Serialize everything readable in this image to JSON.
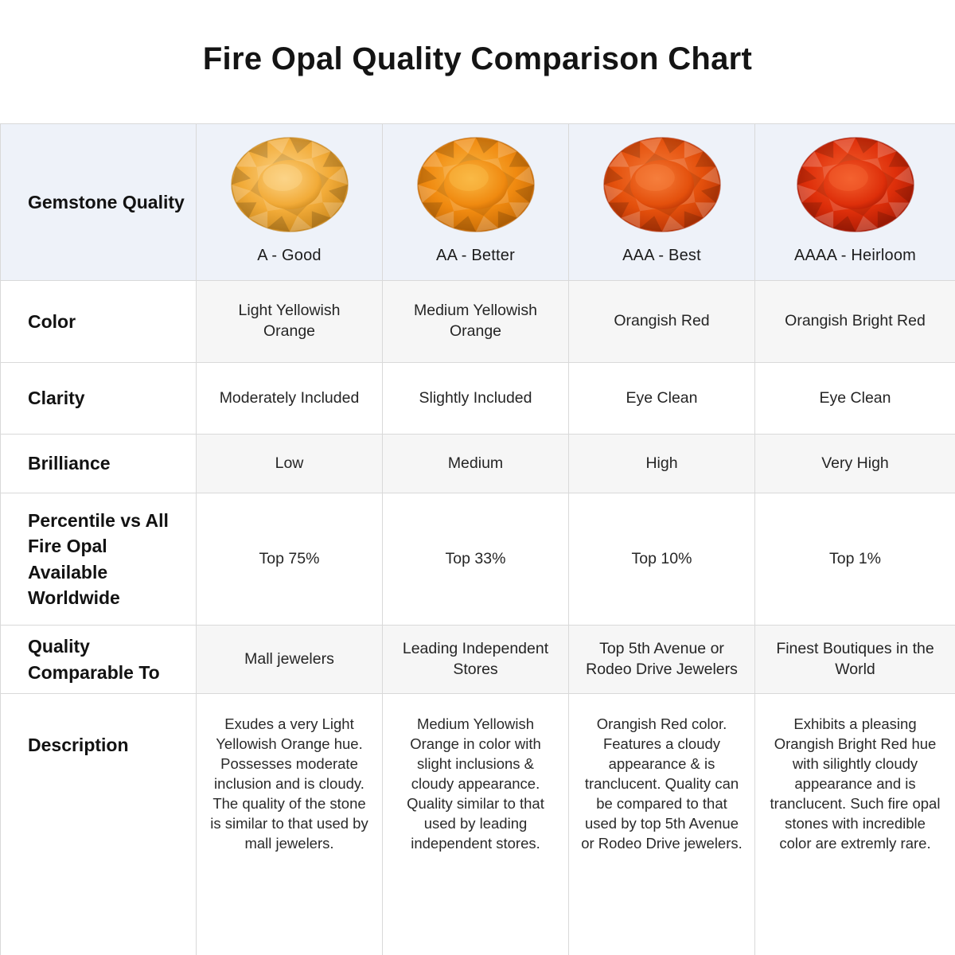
{
  "colors": {
    "header_bg": "#eef2f9",
    "row_alt_bg": "#f6f6f6",
    "border": "#d9d9d9",
    "title_text": "#141414"
  },
  "chart_data": {
    "type": "table",
    "title": "Fire Opal Quality Comparison Chart",
    "row_labels": {
      "gemstone_quality": "Gemstone Quality",
      "color": "Color",
      "clarity": "Clarity",
      "brilliance": "Brilliance",
      "percentile": "Percentile vs All Fire Opal Available Worldwide",
      "comparable": "Quality Comparable To",
      "description": "Description"
    },
    "grades": [
      {
        "label": "A - Good",
        "gem_colors": {
          "light": "#fbd488",
          "base": "#f2ab38",
          "dark": "#c07e16"
        },
        "color": "Light Yellowish Orange",
        "clarity": "Moderately Included",
        "brilliance": "Low",
        "percentile": "Top 75%",
        "comparable": "Mall jewelers",
        "description": "Exudes a very Light Yellowish Orange hue. Possesses moderate inclusion and is cloudy. The quality of the stone is similar to that used by mall jewelers."
      },
      {
        "label": "AA - Better",
        "gem_colors": {
          "light": "#fab945",
          "base": "#f08a10",
          "dark": "#bb6204"
        },
        "color": "Medium Yellowish Orange",
        "clarity": "Slightly Included",
        "brilliance": "Medium",
        "percentile": "Top 33%",
        "comparable": "Leading Independent Stores",
        "description": "Medium Yellowish Orange in color with slight inclusions & cloudy appearance. Quality similar to that used by leading independent stores."
      },
      {
        "label": "AAA - Best",
        "gem_colors": {
          "light": "#f57e3c",
          "base": "#e4500c",
          "dark": "#ad2c04"
        },
        "color": "Orangish Red",
        "clarity": "Eye Clean",
        "brilliance": "High",
        "percentile": "Top 10%",
        "comparable": "Top 5th Avenue or Rodeo Drive Jewelers",
        "description": "Orangish Red color. Features a cloudy appearance & is tranclucent. Quality can be compared to that used by top 5th Avenue or Rodeo Drive jewelers."
      },
      {
        "label": "AAAA - Heirloom",
        "gem_colors": {
          "light": "#f4622f",
          "base": "#de2f0a",
          "dark": "#9e1503"
        },
        "color": "Orangish Bright Red",
        "clarity": "Eye Clean",
        "brilliance": "Very High",
        "percentile": "Top 1%",
        "comparable": "Finest Boutiques in the World",
        "description": "Exhibits a pleasing Orangish Bright Red hue with silightly cloudy appearance and is tranclucent. Such fire opal stones with incredible color are extremly rare."
      }
    ]
  }
}
